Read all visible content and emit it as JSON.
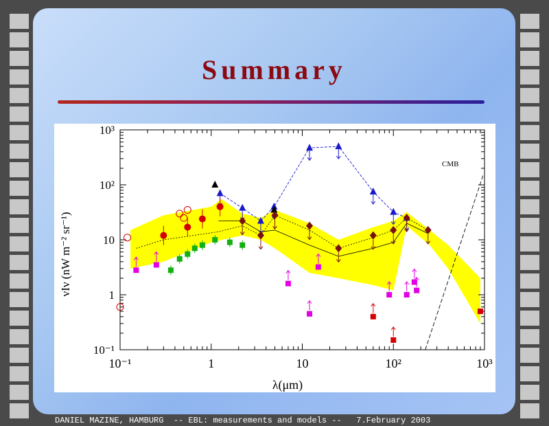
{
  "slide": {
    "title": "Summary",
    "footer": "DANIEL MAZINE, HAMBURG  -- EBL: measurements and models --   7.February 2003"
  },
  "colors": {
    "title": "#8b0a12",
    "frame": "#4a4a4a",
    "band": "#ffff00",
    "blue": "#1a1acd",
    "red": "#d40000",
    "magenta": "#e400e4",
    "green": "#12b012",
    "brown": "#7a1010"
  },
  "chart_data": {
    "type": "scatter",
    "xlabel": "λ(μm)",
    "ylabel": "νIν (nW m⁻² sr⁻¹)",
    "x_scale": "log",
    "y_scale": "log",
    "xlim": [
      0.1,
      1000
    ],
    "ylim": [
      0.1,
      1000
    ],
    "x_ticks": [
      "10⁻¹",
      "1",
      "10",
      "10²",
      "10³"
    ],
    "y_ticks": [
      "10⁻¹",
      "1",
      "10",
      "10²",
      "10³"
    ],
    "annotations": [
      "CMB"
    ],
    "band": {
      "upper": [
        [
          0.13,
          15
        ],
        [
          0.3,
          28
        ],
        [
          1,
          40
        ],
        [
          1.3,
          55
        ],
        [
          2.2,
          30
        ],
        [
          3.5,
          25
        ],
        [
          5,
          35
        ],
        [
          12,
          20
        ],
        [
          25,
          10
        ],
        [
          60,
          17
        ],
        [
          100,
          22
        ],
        [
          140,
          32
        ],
        [
          250,
          15
        ],
        [
          400,
          8
        ],
        [
          900,
          2
        ]
      ],
      "lower": [
        [
          900,
          0.3
        ],
        [
          400,
          3
        ],
        [
          250,
          8
        ],
        [
          140,
          18
        ],
        [
          100,
          1.2
        ],
        [
          60,
          1.5
        ],
        [
          25,
          2
        ],
        [
          12,
          2.5
        ],
        [
          5,
          7
        ],
        [
          3.5,
          10
        ],
        [
          2.2,
          12
        ],
        [
          1,
          9
        ],
        [
          0.3,
          4
        ],
        [
          0.13,
          3
        ]
      ]
    },
    "blue_upper_limits": {
      "x": [
        1.25,
        2.2,
        3.5,
        4.9,
        12,
        25,
        60,
        100,
        140
      ],
      "y": [
        70,
        38,
        22,
        40,
        470,
        500,
        75,
        32,
        25
      ]
    },
    "model_solid": {
      "x": [
        1.2,
        2.2,
        3.5,
        5,
        12,
        25,
        60,
        100,
        140,
        240
      ],
      "y": [
        22,
        22,
        14,
        15,
        8,
        5,
        7,
        9,
        20,
        13
      ]
    },
    "model_dotted": {
      "x": [
        0.15,
        0.3,
        1.2,
        2.2,
        3.5,
        5,
        12,
        25,
        60,
        100,
        140,
        240
      ],
      "y": [
        7,
        10,
        14,
        18,
        12,
        28,
        15,
        7,
        11,
        15,
        25,
        15
      ]
    },
    "red_circles": {
      "x": [
        0.3,
        0.55,
        0.8,
        1.25
      ],
      "y": [
        12,
        17,
        24,
        40
      ]
    },
    "red_open_circles": {
      "x": [
        0.1,
        0.12,
        0.45,
        0.5,
        0.55
      ],
      "y": [
        0.6,
        11,
        30,
        25,
        35
      ]
    },
    "green_squares": {
      "x": [
        0.36,
        0.45,
        0.55,
        0.66,
        0.8,
        1.1,
        1.6,
        2.2
      ],
      "y": [
        2.8,
        4.5,
        5.5,
        7,
        8,
        10,
        9,
        8
      ]
    },
    "magenta_squares": {
      "x": [
        0.15,
        0.25,
        7,
        12,
        15,
        90,
        140,
        170,
        180
      ],
      "y": [
        2.8,
        3.5,
        1.6,
        0.45,
        3.2,
        1,
        1,
        1.7,
        1.2
      ]
    },
    "red_squares": {
      "x": [
        60,
        100,
        900
      ],
      "y": [
        0.4,
        0.15,
        0.5
      ]
    },
    "brown_diamonds": {
      "x": [
        2.2,
        3.5,
        5,
        12,
        25,
        60,
        100,
        140,
        240
      ],
      "y": [
        22,
        12,
        28,
        18,
        7,
        12,
        15,
        25,
        15
      ]
    },
    "black_triangles": {
      "x": [
        1.1,
        4.9
      ],
      "y": [
        100,
        35
      ]
    }
  }
}
